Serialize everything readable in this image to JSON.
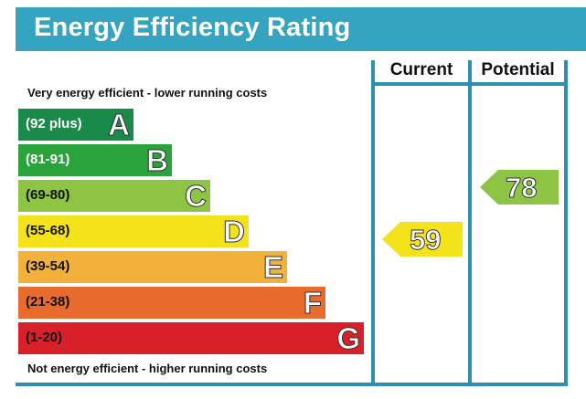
{
  "title": "Energy Efficiency Rating",
  "columns": {
    "current": "Current",
    "potential": "Potential"
  },
  "notes": {
    "top": "Very energy efficient - lower running costs",
    "bottom": "Not energy efficient - higher running costs"
  },
  "chart_data": {
    "type": "bar",
    "title": "Energy Efficiency Rating",
    "bands": [
      {
        "letter": "A",
        "range": "(92 plus)",
        "color": "#1a8a4a",
        "text_color": "#ffffff"
      },
      {
        "letter": "B",
        "range": "(81-91)",
        "color": "#2aa43a",
        "text_color": "#ffffff"
      },
      {
        "letter": "C",
        "range": "(69-80)",
        "color": "#8dc443",
        "text_color": "#111111"
      },
      {
        "letter": "D",
        "range": "(55-68)",
        "color": "#f4e21a",
        "text_color": "#111111"
      },
      {
        "letter": "E",
        "range": "(39-54)",
        "color": "#f2b13a",
        "text_color": "#111111"
      },
      {
        "letter": "F",
        "range": "(21-38)",
        "color": "#e86a2c",
        "text_color": "#111111"
      },
      {
        "letter": "G",
        "range": "(1-20)",
        "color": "#d8202a",
        "text_color": "#111111"
      }
    ],
    "current": {
      "value": "59",
      "band": "D",
      "color": "#f4e21a"
    },
    "potential": {
      "value": "78",
      "band": "C",
      "color": "#8dc443"
    }
  }
}
